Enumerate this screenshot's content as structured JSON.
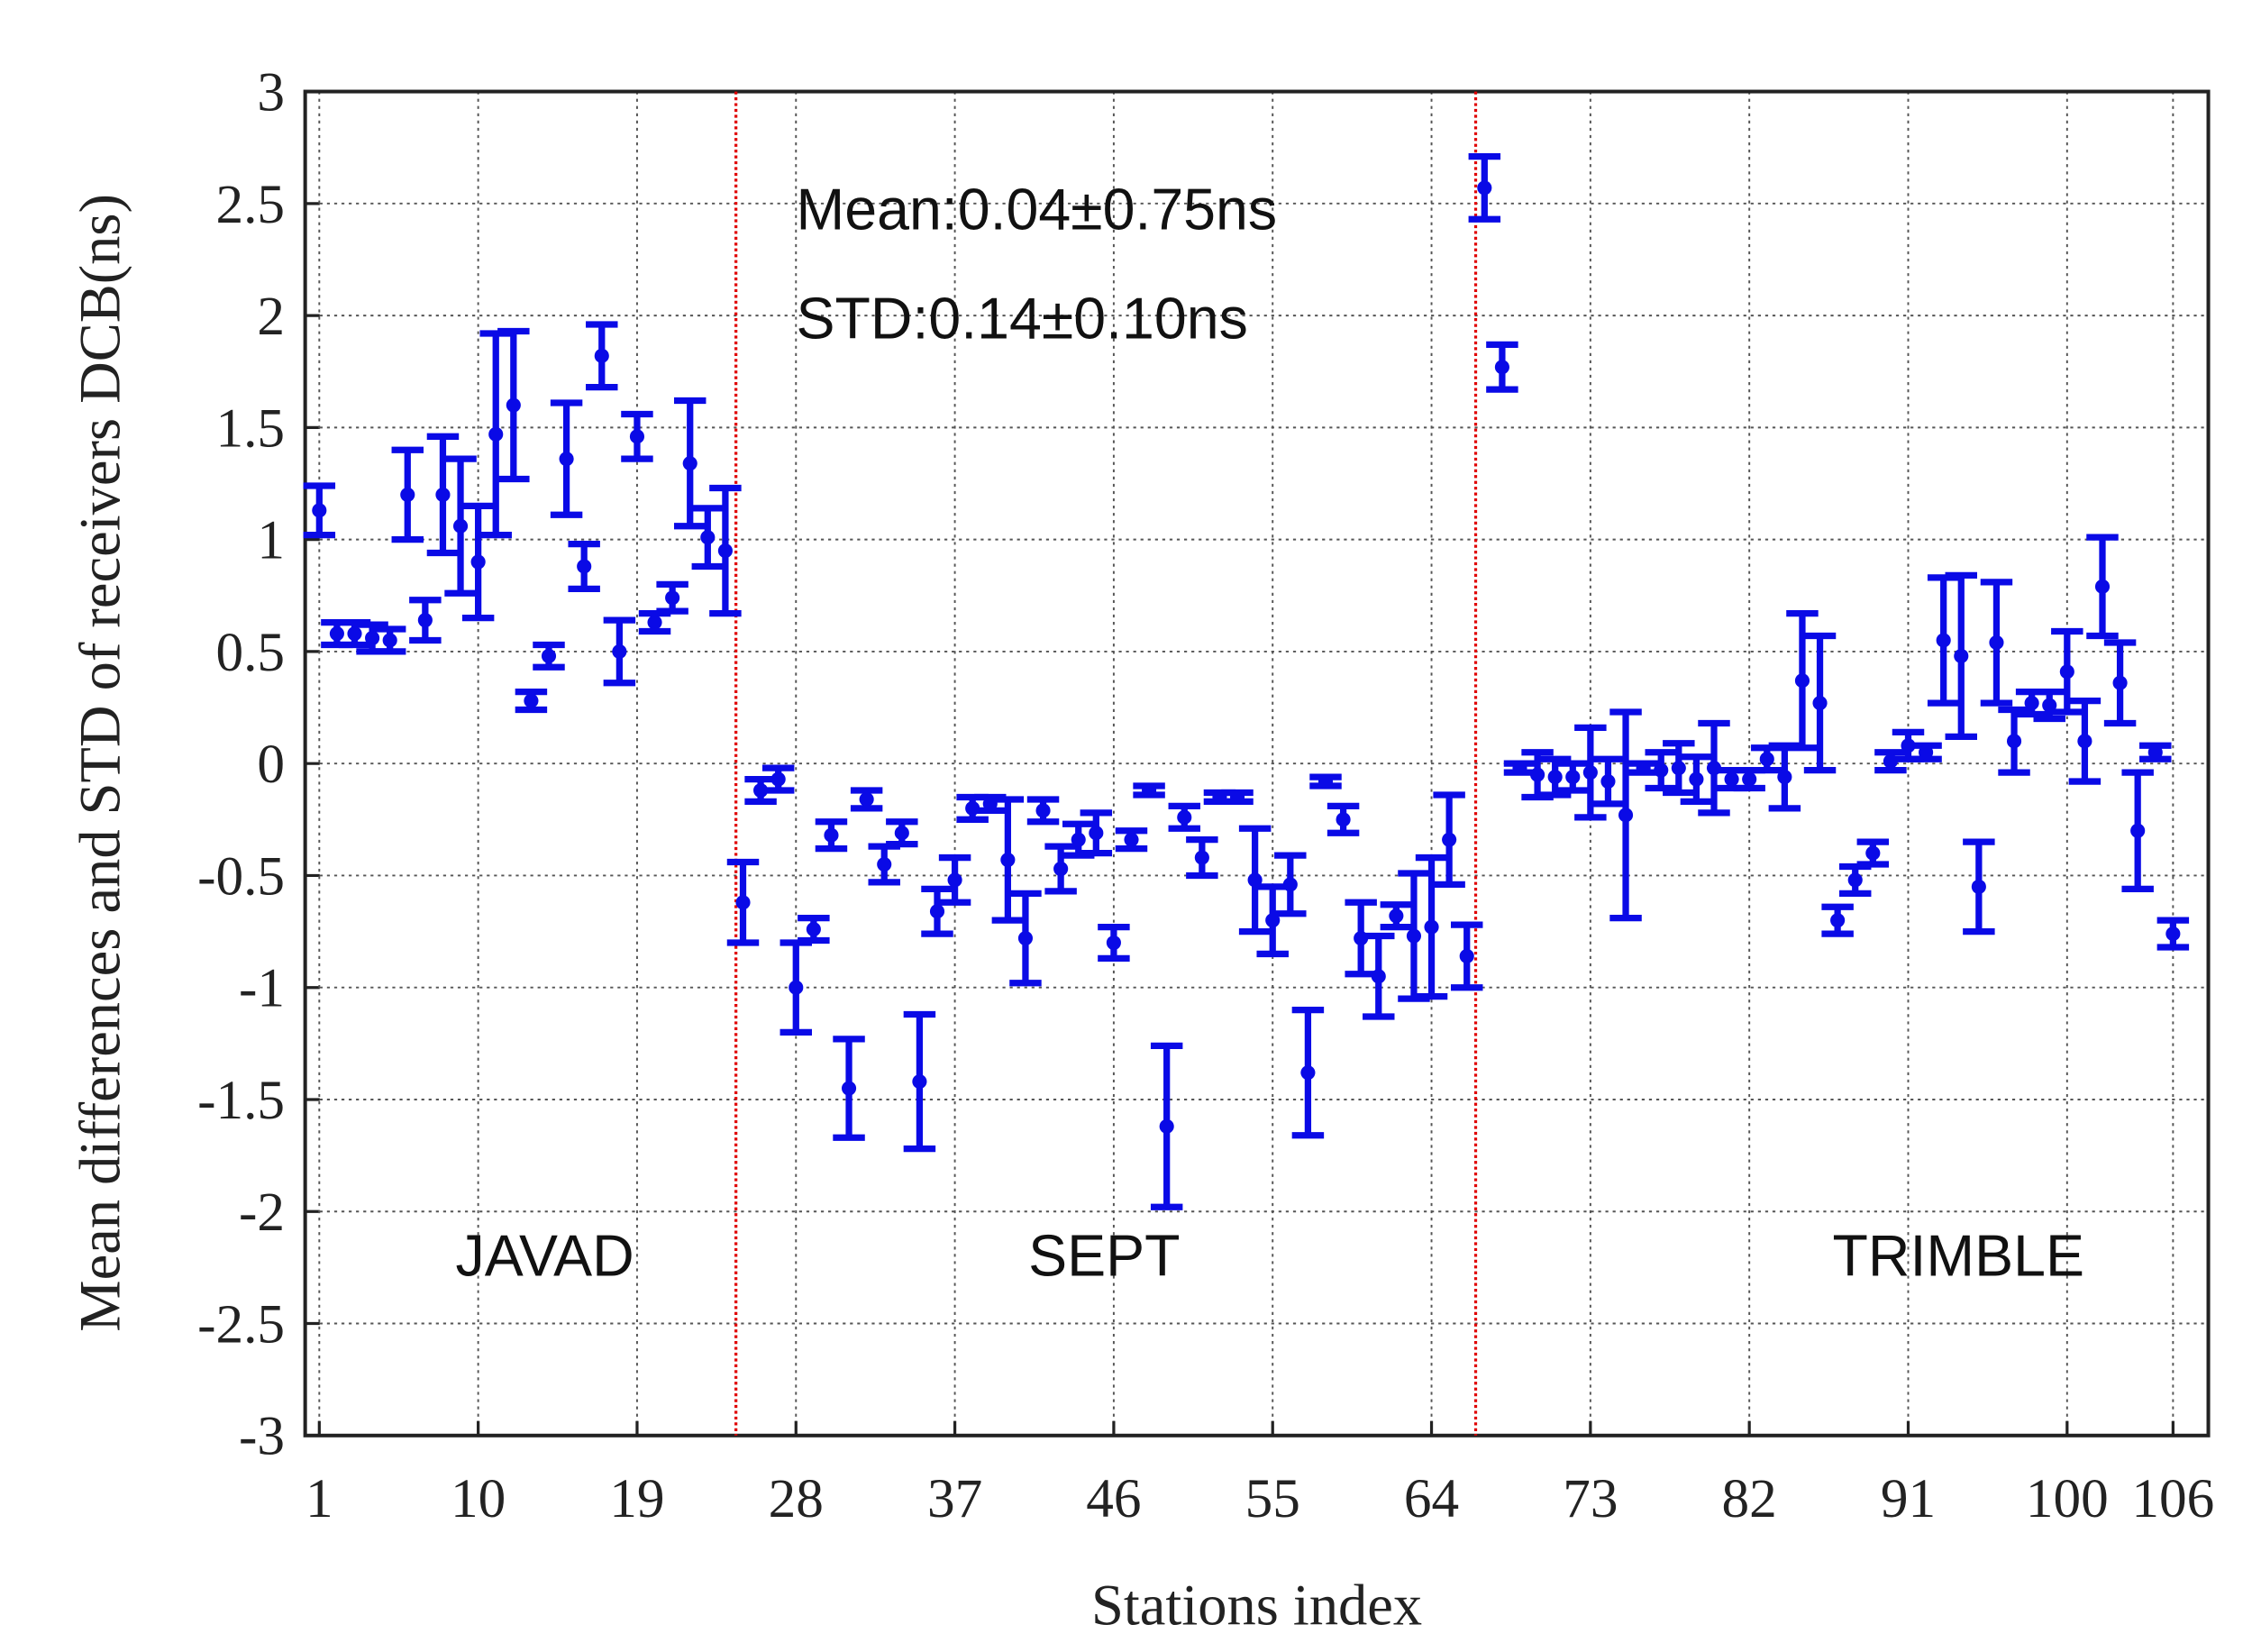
{
  "chart_data": {
    "type": "errorbar",
    "xlabel": "Stations index",
    "ylabel": "Mean differences and STD of receivers DCB(ns)",
    "annotations": [
      "Mean:0.04±0.75ns",
      "STD:0.14±0.10ns",
      "JAVAD",
      "SEPT",
      "TRIMBLE"
    ],
    "color": "#0a0ae6",
    "separator_color": "#e00000",
    "separators": [
      24.6,
      66.5
    ],
    "grid": true,
    "xlim": [
      0.2,
      108
    ],
    "ylim": [
      -3,
      3
    ],
    "xticks": [
      1,
      10,
      19,
      28,
      37,
      46,
      55,
      64,
      73,
      82,
      91,
      100,
      106
    ],
    "yticks": [
      -3,
      -2.5,
      -2,
      -1.5,
      -1,
      -0.5,
      0,
      0.5,
      1,
      1.5,
      2,
      2.5,
      3
    ],
    "x": [
      1,
      2,
      3,
      4,
      5,
      6,
      7,
      8,
      9,
      10,
      11,
      12,
      13,
      14,
      15,
      16,
      17,
      18,
      19,
      20,
      21,
      22,
      23,
      24,
      25,
      26,
      27,
      28,
      29,
      30,
      31,
      32,
      33,
      34,
      35,
      36,
      37,
      38,
      39,
      40,
      41,
      42,
      43,
      44,
      45,
      46,
      47,
      48,
      49,
      50,
      51,
      52,
      53,
      54,
      55,
      56,
      57,
      58,
      59,
      60,
      61,
      62,
      63,
      64,
      65,
      66,
      67,
      68,
      69,
      70,
      71,
      72,
      73,
      74,
      75,
      76,
      77,
      78,
      79,
      80,
      81,
      82,
      83,
      84,
      85,
      86,
      87,
      88,
      89,
      90,
      91,
      92,
      93,
      94,
      95,
      96,
      97,
      98,
      99,
      100,
      101,
      102,
      103,
      104,
      105,
      106
    ],
    "values": [
      1.13,
      0.58,
      0.58,
      0.56,
      0.55,
      1.2,
      0.64,
      1.2,
      1.06,
      0.9,
      1.47,
      1.6,
      0.28,
      0.48,
      1.36,
      0.88,
      1.82,
      0.5,
      1.46,
      0.63,
      0.74,
      1.34,
      1.01,
      0.95,
      -0.62,
      -0.12,
      -0.07,
      -1.0,
      -0.74,
      -0.32,
      -1.45,
      -0.16,
      -0.45,
      -0.31,
      -1.42,
      -0.66,
      -0.52,
      -0.2,
      -0.18,
      -0.43,
      -0.78,
      -0.21,
      -0.47,
      -0.34,
      -0.31,
      -0.8,
      -0.34,
      -0.12,
      -1.62,
      -0.24,
      -0.42,
      -0.15,
      -0.15,
      -0.52,
      -0.7,
      -0.54,
      -1.38,
      -0.08,
      -0.25,
      -0.78,
      -0.95,
      -0.68,
      -0.77,
      -0.73,
      -0.34,
      -0.86,
      2.57,
      1.77,
      -0.02,
      -0.05,
      -0.06,
      -0.06,
      -0.04,
      -0.08,
      -0.23,
      -0.02,
      -0.03,
      -0.02,
      -0.07,
      -0.02,
      -0.07,
      -0.07,
      0.02,
      -0.06,
      0.37,
      0.27,
      -0.7,
      -0.52,
      -0.4,
      0.01,
      0.08,
      0.05,
      0.55,
      0.48,
      -0.55,
      0.54,
      0.1,
      0.27,
      0.26,
      0.41,
      0.1,
      0.79,
      0.36,
      -0.3,
      0.05,
      -0.76
    ],
    "errors": [
      0.11,
      0.05,
      0.05,
      0.06,
      0.05,
      0.2,
      0.09,
      0.26,
      0.3,
      0.25,
      0.45,
      0.33,
      0.04,
      0.05,
      0.25,
      0.1,
      0.14,
      0.14,
      0.1,
      0.04,
      0.06,
      0.28,
      0.13,
      0.28,
      0.18,
      0.05,
      0.05,
      0.2,
      0.05,
      0.06,
      0.22,
      0.04,
      0.08,
      0.05,
      0.3,
      0.1,
      0.1,
      0.05,
      0.03,
      0.27,
      0.2,
      0.05,
      0.1,
      0.07,
      0.09,
      0.07,
      0.04,
      0.02,
      0.36,
      0.05,
      0.08,
      0.02,
      0.02,
      0.23,
      0.15,
      0.13,
      0.28,
      0.02,
      0.06,
      0.16,
      0.18,
      0.05,
      0.28,
      0.31,
      0.2,
      0.14,
      0.14,
      0.1,
      0.02,
      0.1,
      0.08,
      0.06,
      0.2,
      0.1,
      0.46,
      0.02,
      0.08,
      0.11,
      0.1,
      0.2,
      0.04,
      0.04,
      0.05,
      0.14,
      0.3,
      0.3,
      0.06,
      0.06,
      0.05,
      0.04,
      0.06,
      0.03,
      0.28,
      0.36,
      0.2,
      0.27,
      0.14,
      0.05,
      0.06,
      0.18,
      0.18,
      0.22,
      0.18,
      0.26,
      0.03,
      0.06
    ]
  }
}
